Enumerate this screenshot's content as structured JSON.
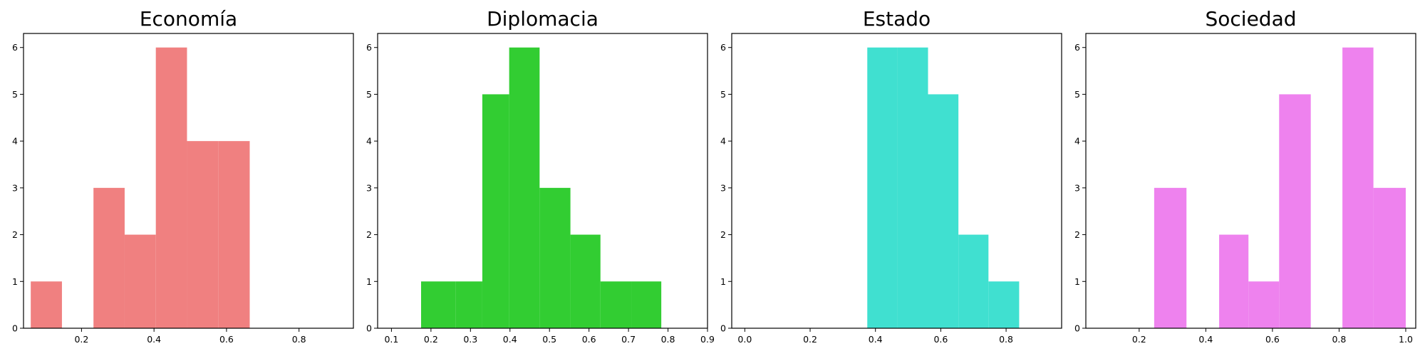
{
  "chart_data": [
    {
      "type": "bar",
      "title": "Economía",
      "color": "#f08080",
      "xlim": [
        0.04,
        0.95
      ],
      "ylim": [
        0,
        6.3
      ],
      "xticks": [
        "0.2",
        "0.4",
        "0.6",
        "0.8"
      ],
      "yticks": [
        "0",
        "1",
        "2",
        "3",
        "4",
        "5",
        "6"
      ],
      "bin_edges": [
        0.06,
        0.146,
        0.233,
        0.319,
        0.405,
        0.491,
        0.578,
        0.664
      ],
      "values": [
        1,
        0,
        3,
        2,
        6,
        4,
        4
      ]
    },
    {
      "type": "bar",
      "title": "Diplomacia",
      "color": "#32cd32",
      "xlim": [
        0.065,
        0.9
      ],
      "ylim": [
        0,
        6.3
      ],
      "xticks": [
        "0.1",
        "0.2",
        "0.3",
        "0.4",
        "0.5",
        "0.6",
        "0.7",
        "0.8",
        "0.9"
      ],
      "yticks": [
        "0",
        "1",
        "2",
        "3",
        "4",
        "5",
        "6"
      ],
      "bin_edges": [
        0.175,
        0.263,
        0.33,
        0.398,
        0.475,
        0.553,
        0.629,
        0.708,
        0.783
      ],
      "values": [
        1,
        1,
        5,
        6,
        3,
        2,
        1,
        1
      ]
    },
    {
      "type": "bar",
      "title": "Estado",
      "color": "#40e0d0",
      "xlim": [
        -0.04,
        0.97
      ],
      "ylim": [
        0,
        6.3
      ],
      "xticks": [
        "0.0",
        "0.2",
        "0.4",
        "0.6",
        "0.8"
      ],
      "yticks": [
        "0",
        "1",
        "2",
        "3",
        "4",
        "5",
        "6"
      ],
      "bin_edges": [
        0.375,
        0.467,
        0.561,
        0.654,
        0.746,
        0.84
      ],
      "values": [
        6,
        6,
        5,
        2,
        1
      ]
    },
    {
      "type": "bar",
      "title": "Sociedad",
      "color": "#ee82ee",
      "xlim": [
        0.04,
        1.03
      ],
      "ylim": [
        0,
        6.3
      ],
      "xticks": [
        "0.2",
        "0.4",
        "0.6",
        "0.8",
        "1.0"
      ],
      "yticks": [
        "0",
        "1",
        "2",
        "3",
        "4",
        "5",
        "6"
      ],
      "bin_edges": [
        0.245,
        0.342,
        0.44,
        0.528,
        0.62,
        0.715,
        0.81,
        0.903,
        1.0
      ],
      "values": [
        3,
        0,
        2,
        1,
        5,
        0,
        6,
        3
      ]
    }
  ]
}
